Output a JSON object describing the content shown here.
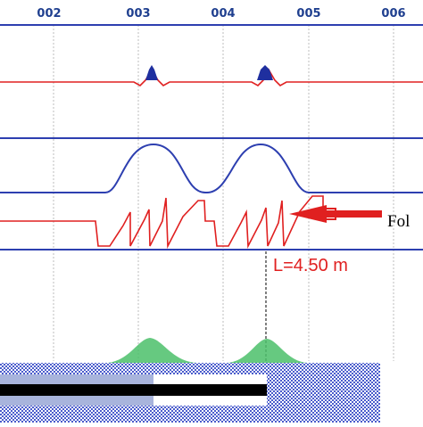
{
  "axis": {
    "tick_labels": [
      "002",
      "003",
      "004",
      "005",
      "006"
    ]
  },
  "annotations": {
    "length_label": "L=4.50 m",
    "arrow_label": "Fol"
  },
  "colors": {
    "signal_red": "#e02020",
    "band_blue": "#2d3fb0",
    "peak_fill": "#1f2f9f",
    "green_peak": "#4bbf6a",
    "grid": "#bdbdbd",
    "pattern": "#5566cc"
  }
}
